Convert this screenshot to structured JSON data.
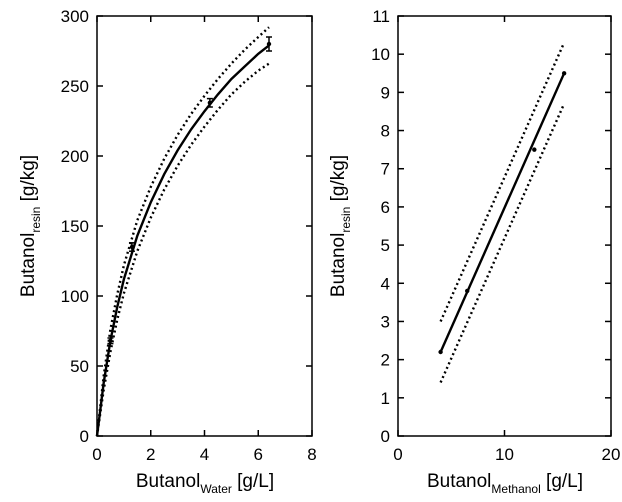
{
  "chart_data": [
    {
      "type": "line",
      "title": "",
      "xlabel": {
        "main": "Butanol",
        "sub": "Water",
        "unit": " [g/L]"
      },
      "ylabel": {
        "main": "Butanol",
        "sub": "resin",
        "unit": " [g/kg]"
      },
      "xlim": [
        0,
        8
      ],
      "ylim": [
        0,
        300
      ],
      "xticks": [
        0,
        2,
        4,
        6,
        8
      ],
      "yticks": [
        0,
        50,
        100,
        150,
        200,
        250,
        300
      ],
      "grid": false,
      "legend": "none",
      "series": [
        {
          "role": "fit",
          "style": "solid",
          "x": [
            0,
            0.25,
            0.5,
            0.75,
            1,
            1.5,
            2,
            2.5,
            3,
            3.5,
            4,
            4.5,
            5,
            5.5,
            6,
            6.4
          ],
          "y": [
            0,
            38,
            68,
            92,
            112,
            143,
            167,
            187,
            204,
            219,
            232,
            244,
            255,
            264,
            273,
            279
          ]
        },
        {
          "role": "upper-bound",
          "style": "dotted",
          "x": [
            0,
            0.25,
            0.5,
            0.75,
            1,
            1.5,
            2,
            2.5,
            3,
            3.5,
            4,
            4.5,
            5,
            5.5,
            6,
            6.4
          ],
          "y": [
            0,
            43,
            76,
            101,
            122,
            154,
            178,
            198,
            215,
            230,
            243,
            255,
            266,
            276,
            285,
            292
          ]
        },
        {
          "role": "lower-bound",
          "style": "dotted",
          "x": [
            0,
            0.25,
            0.5,
            0.75,
            1,
            1.5,
            2,
            2.5,
            3,
            3.5,
            4,
            4.5,
            5,
            5.5,
            6,
            6.4
          ],
          "y": [
            0,
            33,
            60,
            83,
            102,
            132,
            156,
            176,
            193,
            208,
            221,
            233,
            244,
            253,
            261,
            266
          ]
        },
        {
          "role": "measured",
          "style": "points",
          "x": [
            0.5,
            1.3,
            4.2,
            6.4
          ],
          "y": [
            68,
            135,
            238,
            280
          ],
          "error": [
            2,
            3,
            3,
            5
          ]
        }
      ]
    },
    {
      "type": "line",
      "title": "",
      "xlabel": {
        "main": "Butanol",
        "sub": "Methanol",
        "unit": " [g/L]"
      },
      "ylabel": {
        "main": "Butanol",
        "sub": "resin",
        "unit": " [g/kg]"
      },
      "xlim": [
        0,
        20
      ],
      "ylim": [
        0,
        11
      ],
      "xticks": [
        0,
        10,
        20
      ],
      "yticks": [
        0,
        1,
        2,
        3,
        4,
        5,
        6,
        7,
        8,
        9,
        10,
        11
      ],
      "grid": false,
      "legend": "none",
      "series": [
        {
          "role": "fit",
          "style": "solid",
          "x": [
            4,
            15.6
          ],
          "y": [
            2.2,
            9.5
          ]
        },
        {
          "role": "upper-bound",
          "style": "dotted",
          "x": [
            4,
            15.6
          ],
          "y": [
            3.0,
            10.3
          ]
        },
        {
          "role": "lower-bound",
          "style": "dotted",
          "x": [
            4,
            15.6
          ],
          "y": [
            1.4,
            8.7
          ]
        },
        {
          "role": "measured",
          "style": "points",
          "x": [
            4,
            6.5,
            12.8,
            15.6
          ],
          "y": [
            2.2,
            3.8,
            7.5,
            9.5
          ]
        }
      ]
    }
  ]
}
